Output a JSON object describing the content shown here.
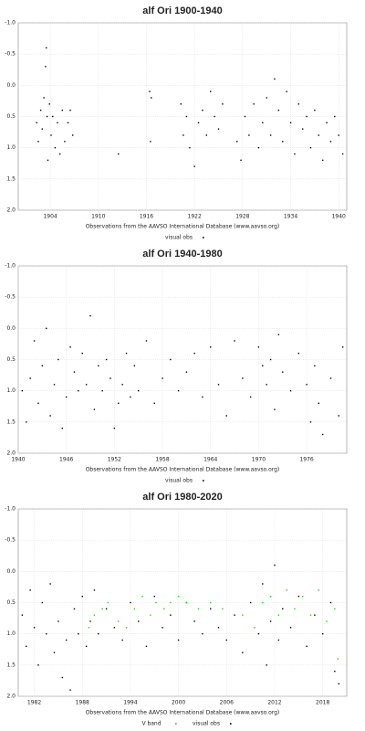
{
  "chart_data": [
    {
      "type": "scatter",
      "title": "alf Ori 1900-1940",
      "caption": "Observations from the AAVSO International Database (www.aavso.org)",
      "xlim": [
        1900,
        1941
      ],
      "xticks": [
        1904,
        1910,
        1916,
        1922,
        1928,
        1934,
        1940
      ],
      "ylim": [
        -1.0,
        2.0
      ],
      "y_inverted": true,
      "grid": true,
      "yticks": [
        {
          "value": -1.0,
          "label": "-1.0"
        },
        {
          "value": -0.5,
          "label": "-0.5"
        },
        {
          "value": 0,
          "label": "0.0"
        },
        {
          "value": 0.5,
          "label": "0.5"
        },
        {
          "value": 1.0,
          "label": "1.0"
        },
        {
          "value": 1.5,
          "label": "1.5"
        },
        {
          "value": 2.0,
          "label": "2.0"
        }
      ],
      "series": [
        {
          "name": "visual obs",
          "color": "#000000",
          "x": [
            1902.3,
            1902.5,
            1902.8,
            1903.0,
            1903.2,
            1903.4,
            1903.5,
            1903.6,
            1903.7,
            1903.9,
            1904.1,
            1904.3,
            1904.6,
            1904.9,
            1905.2,
            1905.5,
            1905.8,
            1906.2,
            1906.5,
            1906.8,
            1912.5,
            1916.4,
            1916.5,
            1916.6,
            1920.3,
            1920.6,
            1921.0,
            1921.4,
            1922.0,
            1922.5,
            1923.0,
            1923.5,
            1924.0,
            1924.5,
            1925.0,
            1925.5,
            1927.3,
            1927.8,
            1928.3,
            1928.8,
            1929.4,
            1930.0,
            1930.5,
            1931.0,
            1931.5,
            1932.0,
            1932.5,
            1933.0,
            1933.5,
            1934.0,
            1934.5,
            1935.0,
            1935.5,
            1936.0,
            1936.5,
            1937.0,
            1937.5,
            1938.0,
            1938.5,
            1939.0,
            1939.5,
            1940.0,
            1940.5
          ],
          "values": [
            0.6,
            0.9,
            0.4,
            0.7,
            0.2,
            -0.3,
            -0.6,
            0.5,
            1.2,
            0.3,
            0.8,
            0.5,
            1.0,
            0.6,
            1.1,
            0.4,
            0.9,
            0.6,
            0.4,
            0.8,
            1.1,
            0.1,
            0.9,
            0.2,
            0.3,
            0.8,
            0.5,
            1.0,
            1.3,
            0.6,
            0.4,
            0.8,
            0.1,
            0.5,
            0.7,
            0.3,
            0.9,
            1.2,
            0.5,
            0.8,
            0.3,
            1.0,
            0.6,
            0.2,
            0.8,
            -0.1,
            0.4,
            0.9,
            0.1,
            0.6,
            1.1,
            0.3,
            0.7,
            0.5,
            1.0,
            0.4,
            0.8,
            1.2,
            0.6,
            0.9,
            0.5,
            0.8,
            1.1
          ]
        }
      ]
    },
    {
      "type": "scatter",
      "title": "alf Ori 1940-1980",
      "caption": "Observations from the AAVSO International Database (www.aavso.org)",
      "xlim": [
        1940,
        1981
      ],
      "xticks": [
        1940,
        1946,
        1952,
        1958,
        1964,
        1970,
        1976
      ],
      "ylim": [
        -1.0,
        2.0
      ],
      "y_inverted": true,
      "grid": true,
      "yticks": [
        {
          "value": -1.0,
          "label": "-1.0"
        },
        {
          "value": -0.5,
          "label": "-0.5"
        },
        {
          "value": 0,
          "label": "0.0"
        },
        {
          "value": 0.5,
          "label": "0.5"
        },
        {
          "value": 1.0,
          "label": "1.0"
        },
        {
          "value": 1.5,
          "label": "1.5"
        },
        {
          "value": 2.0,
          "label": "2.0"
        }
      ],
      "series": [
        {
          "name": "visual obs",
          "color": "#000000",
          "x": [
            1940.5,
            1941.0,
            1941.5,
            1942.0,
            1942.5,
            1943.0,
            1943.5,
            1944.0,
            1944.5,
            1945.0,
            1945.5,
            1946.0,
            1946.5,
            1947.0,
            1947.5,
            1948.0,
            1948.5,
            1949.0,
            1949.5,
            1950.0,
            1950.5,
            1951.0,
            1951.5,
            1952.0,
            1952.5,
            1953.0,
            1953.5,
            1954.0,
            1954.5,
            1955.0,
            1956.0,
            1957.0,
            1958.0,
            1959.0,
            1960.0,
            1961.0,
            1962.0,
            1963.0,
            1964.0,
            1965.0,
            1966.0,
            1967.0,
            1968.0,
            1969.0,
            1970.0,
            1970.5,
            1971.0,
            1971.5,
            1972.0,
            1972.5,
            1973.0,
            1974.0,
            1975.0,
            1976.0,
            1976.5,
            1977.0,
            1977.5,
            1978.0,
            1979.0,
            1980.0,
            1980.5
          ],
          "values": [
            1.0,
            1.5,
            0.8,
            0.2,
            1.2,
            0.6,
            0.0,
            1.4,
            0.9,
            0.5,
            1.6,
            1.1,
            0.3,
            0.7,
            1.0,
            0.4,
            0.9,
            -0.2,
            1.3,
            0.6,
            1.0,
            0.5,
            0.8,
            1.6,
            1.2,
            0.9,
            0.4,
            1.1,
            0.6,
            1.0,
            0.2,
            1.2,
            0.8,
            0.5,
            1.0,
            0.7,
            0.4,
            1.1,
            0.3,
            0.9,
            1.4,
            0.2,
            0.8,
            1.1,
            0.3,
            0.6,
            0.9,
            0.5,
            1.3,
            0.1,
            0.7,
            1.0,
            0.4,
            0.9,
            1.5,
            0.6,
            1.2,
            1.7,
            0.8,
            1.4,
            0.3
          ]
        }
      ]
    },
    {
      "type": "scatter",
      "title": "alf Ori 1980-2020",
      "caption": "Observations from the AAVSO International Database (www.aavso.org)",
      "xlim": [
        1980,
        2021
      ],
      "xticks": [
        1982,
        1988,
        1994,
        2000,
        2006,
        2012,
        2018
      ],
      "ylim": [
        -1.0,
        2.0
      ],
      "y_inverted": true,
      "grid": true,
      "yticks": [
        {
          "value": -1.0,
          "label": "-1.0"
        },
        {
          "value": -0.5,
          "label": "-0.5"
        },
        {
          "value": 0,
          "label": "0.0"
        },
        {
          "value": 0.5,
          "label": "0.5"
        },
        {
          "value": 1.0,
          "label": "1.0"
        },
        {
          "value": 1.5,
          "label": "1.5"
        },
        {
          "value": 2.0,
          "label": "2.0"
        }
      ],
      "series": [
        {
          "name": "V band",
          "color": "#22cc22",
          "x": [
            1988.8,
            1989.5,
            1990.5,
            1991.2,
            1992.5,
            1993.5,
            1994.5,
            1995.5,
            1996.5,
            1997.2,
            1998.2,
            1999.0,
            2000.0,
            2001.0,
            2002.5,
            2004.0,
            2005.5,
            2008.0,
            2009.5,
            2010.5,
            2011.5,
            2012.5,
            2013.5,
            2014.5,
            2015.5,
            2016.5,
            2017.5,
            2018.5,
            2019.5,
            2019.9
          ],
          "values": [
            0.9,
            0.7,
            0.6,
            0.5,
            0.8,
            0.9,
            0.6,
            0.4,
            0.7,
            0.5,
            0.6,
            0.5,
            0.4,
            0.5,
            0.6,
            0.5,
            0.6,
            0.7,
            0.9,
            0.5,
            0.4,
            0.7,
            0.3,
            0.6,
            0.4,
            0.7,
            0.3,
            0.8,
            0.6,
            1.4
          ]
        },
        {
          "name": "visual obs",
          "color": "#000000",
          "x": [
            1980.5,
            1981.0,
            1981.5,
            1982.0,
            1982.5,
            1983.0,
            1983.5,
            1984.0,
            1984.5,
            1985.0,
            1985.5,
            1986.0,
            1986.5,
            1987.0,
            1987.5,
            1988.0,
            1988.5,
            1989.0,
            1989.5,
            1990.0,
            1991.0,
            1992.0,
            1993.0,
            1994.0,
            1995.0,
            1996.0,
            1997.0,
            1998.0,
            1999.0,
            2000.0,
            2001.0,
            2002.0,
            2003.0,
            2004.0,
            2005.0,
            2006.0,
            2007.0,
            2008.0,
            2009.0,
            2010.0,
            2010.5,
            2011.0,
            2011.5,
            2012.0,
            2012.5,
            2013.0,
            2014.0,
            2015.0,
            2016.0,
            2017.0,
            2018.0,
            2019.0,
            2019.5,
            2020.0
          ],
          "values": [
            0.7,
            1.2,
            0.3,
            0.9,
            1.5,
            0.5,
            1.0,
            0.2,
            1.3,
            0.8,
            1.7,
            1.1,
            1.9,
            0.6,
            1.0,
            0.4,
            1.2,
            0.8,
            0.3,
            1.0,
            0.6,
            0.9,
            1.1,
            0.5,
            0.8,
            1.2,
            0.4,
            0.9,
            0.7,
            1.1,
            0.5,
            0.8,
            1.0,
            0.6,
            0.9,
            1.1,
            0.7,
            1.3,
            0.5,
            1.0,
            0.2,
            1.5,
            0.8,
            -0.1,
            1.1,
            0.6,
            0.9,
            0.4,
            1.2,
            0.7,
            1.0,
            0.5,
            1.6,
            1.8
          ]
        }
      ]
    }
  ]
}
